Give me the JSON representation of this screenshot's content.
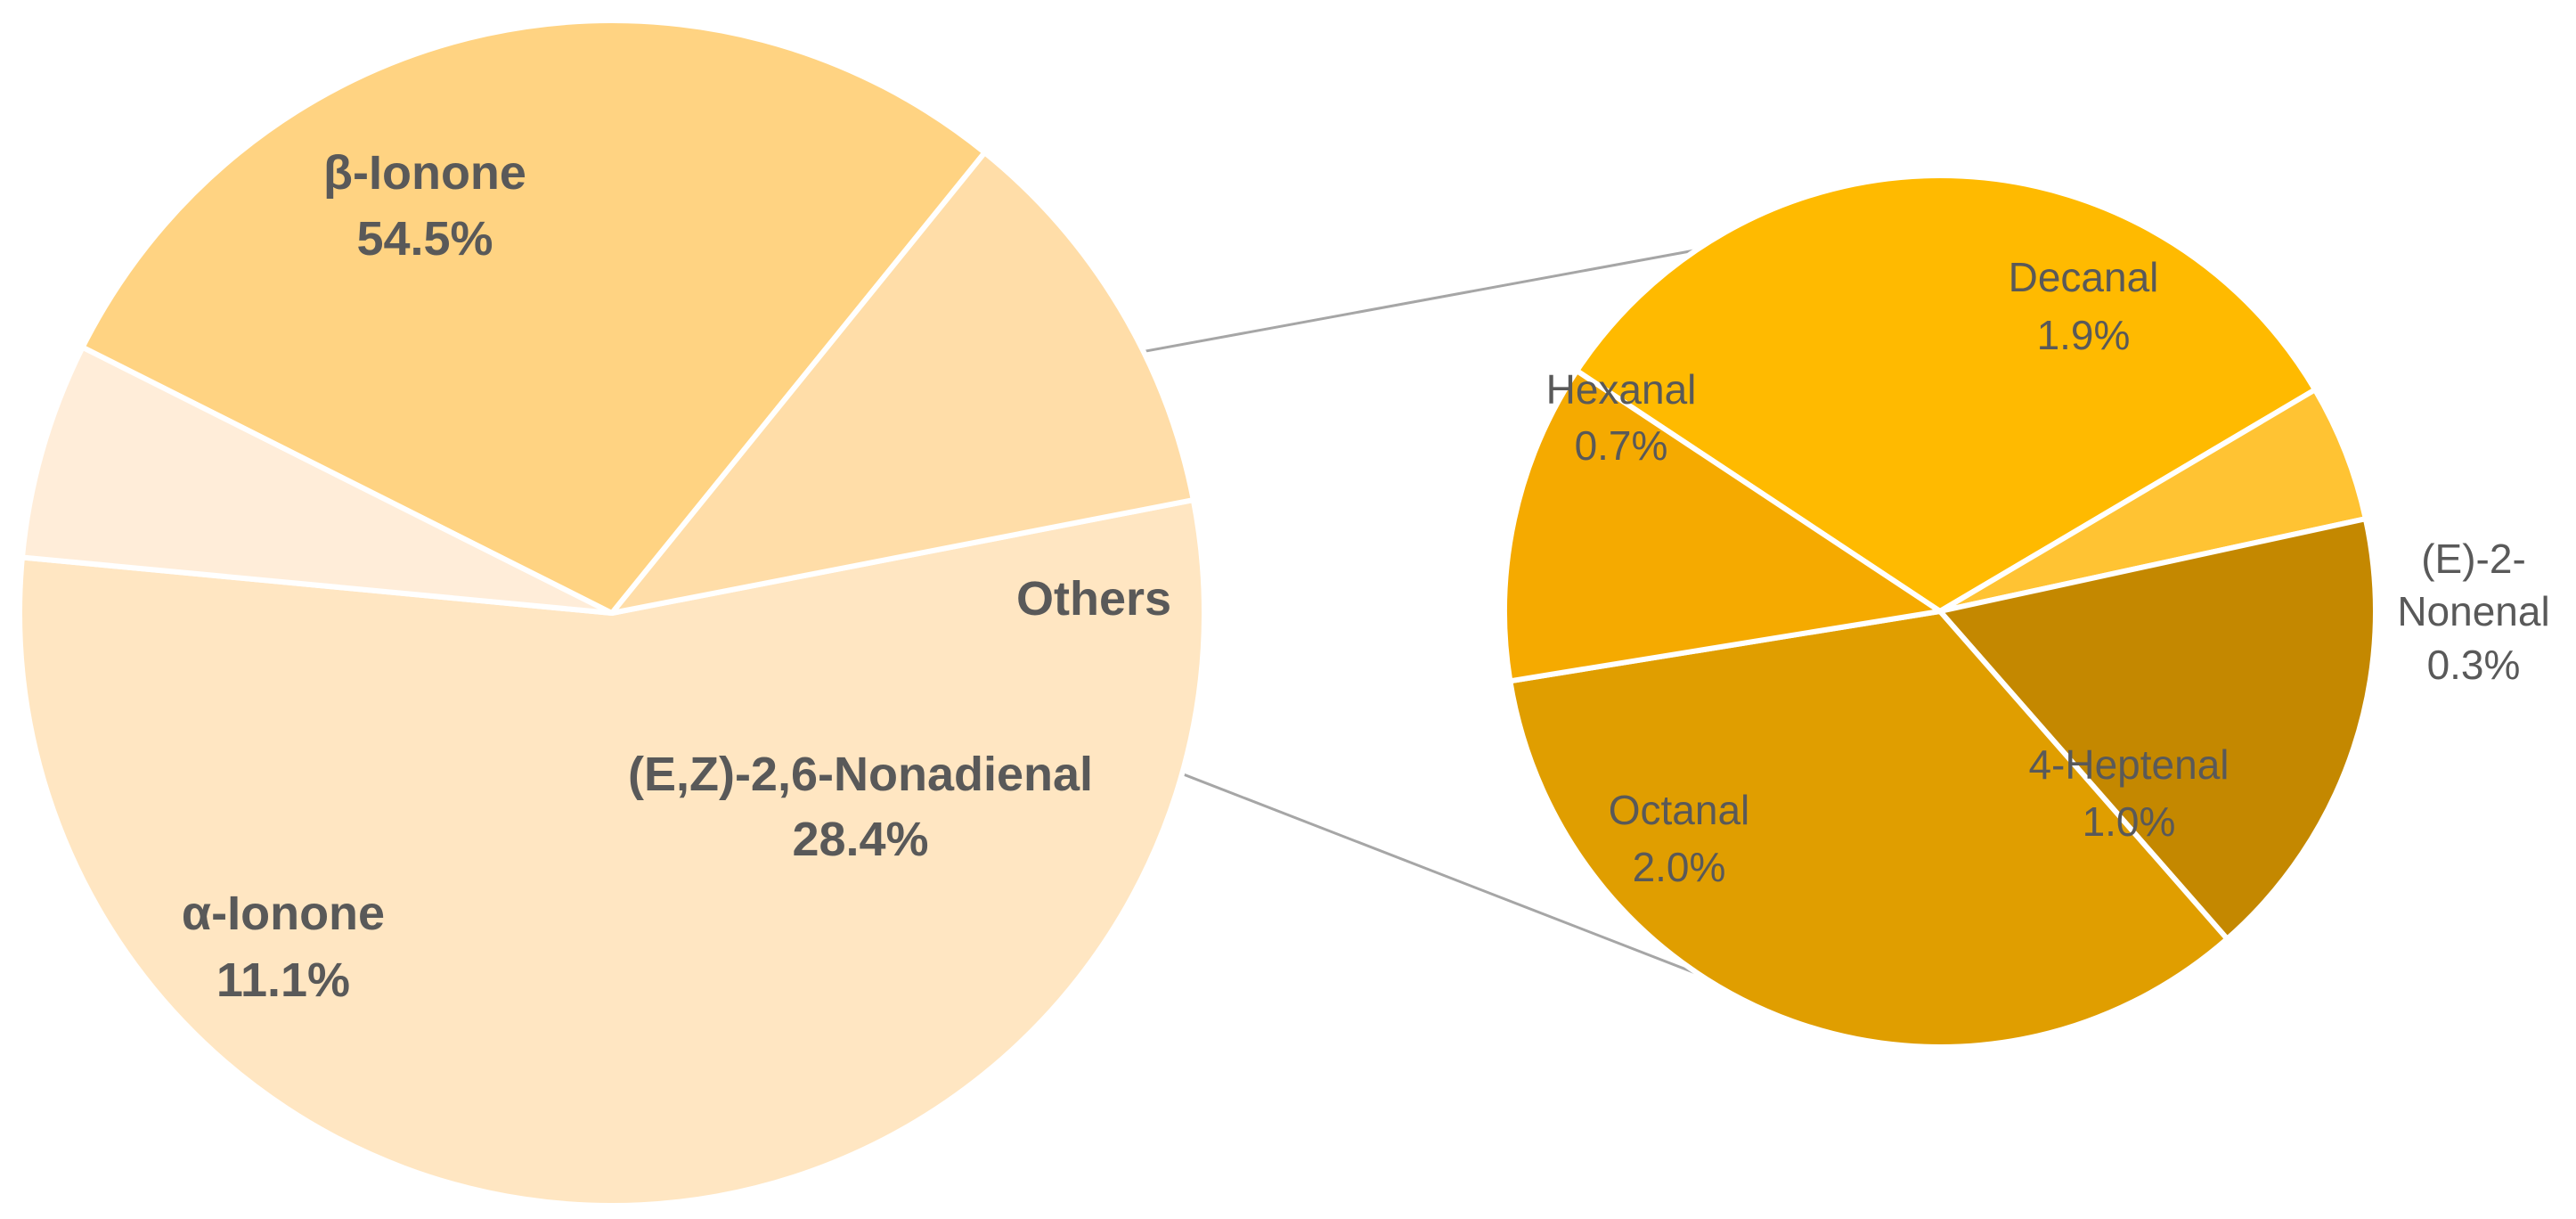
{
  "chart_data": [
    {
      "type": "pie",
      "title": "",
      "slices": [
        {
          "label": "β-Ionone",
          "value": 54.5,
          "display": "54.5%",
          "color": "#FFE6C2"
        },
        {
          "label": "Others",
          "value": 5.9,
          "display": "",
          "color": "#FFEDD9"
        },
        {
          "label": "(E,Z)-2,6-Nonadienal",
          "value": 28.4,
          "display": "28.4%",
          "color": "#FFD382"
        },
        {
          "label": "α-Ionone",
          "value": 11.1,
          "display": "11.1%",
          "color": "#FFDDA8"
        }
      ]
    },
    {
      "type": "pie",
      "title": "",
      "breakdown_of": "Others",
      "slices": [
        {
          "label": "Decanal",
          "value": 1.9,
          "display": "1.9%",
          "color": "#FFBA00"
        },
        {
          "label": "(E)-2-Nonenal",
          "value": 0.3,
          "display": "0.3%",
          "color": "#FFC333"
        },
        {
          "label": "4-Heptenal",
          "value": 1.0,
          "display": "1.0%",
          "color": "#C48800"
        },
        {
          "label": "Octanal",
          "value": 2.0,
          "display": "2.0%",
          "color": "#E09E00"
        },
        {
          "label": "Hexanal",
          "value": 0.7,
          "display": "0.7%",
          "color": "#F5AA00"
        }
      ]
    }
  ]
}
